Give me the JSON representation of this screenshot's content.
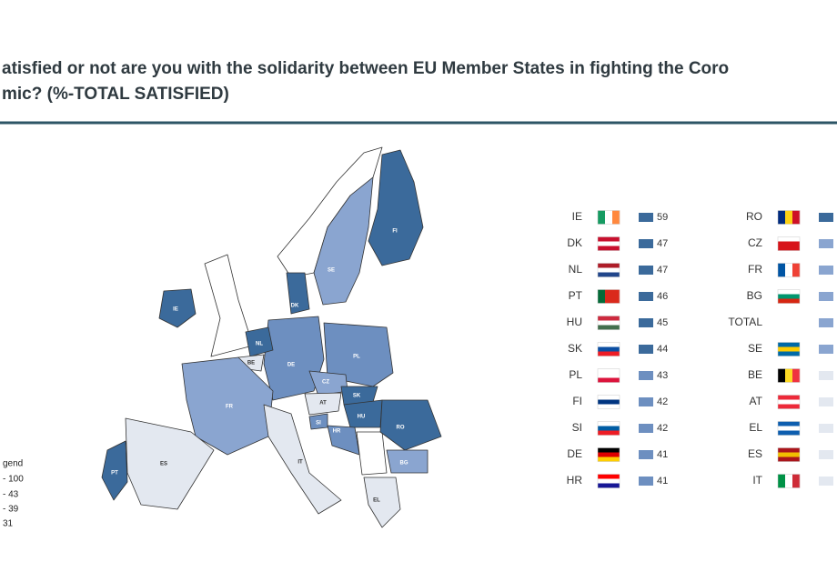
{
  "header": {
    "title_lines": [
      "atisfied or not are you with the solidarity between EU Member States in fighting the Coro",
      "mic? (%-TOTAL SATISFIED)"
    ]
  },
  "map": {
    "labels": [
      "FI",
      "SE",
      "IE",
      "DK",
      "NL",
      "BE",
      "DE",
      "PL",
      "FR",
      "CZ",
      "AT",
      "SK",
      "HU",
      "SI",
      "HR",
      "RO",
      "PT",
      "ES",
      "IT",
      "BG",
      "EL"
    ]
  },
  "legend": {
    "title": "gend",
    "items": [
      "- 100",
      "- 43",
      "- 39",
      "31"
    ]
  },
  "table": {
    "left": [
      {
        "code": "IE",
        "value": "59",
        "color": "#3b6a9b",
        "flag": [
          "#169b62",
          "#ffffff",
          "#ff883e"
        ],
        "stripes": "v"
      },
      {
        "code": "DK",
        "value": "47",
        "color": "#3b6a9b",
        "flag": [
          "#c8102e",
          "#ffffff",
          "#c8102e"
        ],
        "stripes": "h"
      },
      {
        "code": "NL",
        "value": "47",
        "color": "#3b6a9b",
        "flag": [
          "#ae1c28",
          "#ffffff",
          "#21468b"
        ],
        "stripes": "h"
      },
      {
        "code": "PT",
        "value": "46",
        "color": "#3b6a9b",
        "flag": [
          "#046a38",
          "#da291c",
          "#da291c"
        ],
        "stripes": "v"
      },
      {
        "code": "HU",
        "value": "45",
        "color": "#3b6a9b",
        "flag": [
          "#cd2a3e",
          "#ffffff",
          "#436f4d"
        ],
        "stripes": "h"
      },
      {
        "code": "SK",
        "value": "44",
        "color": "#3b6a9b",
        "flag": [
          "#ffffff",
          "#0b4ea2",
          "#ee1c25"
        ],
        "stripes": "h"
      },
      {
        "code": "PL",
        "value": "43",
        "color": "#6d8fc0",
        "flag": [
          "#ffffff",
          "#ffffff",
          "#dc143c"
        ],
        "stripes": "h"
      },
      {
        "code": "FI",
        "value": "42",
        "color": "#6d8fc0",
        "flag": [
          "#ffffff",
          "#003580",
          "#ffffff"
        ],
        "stripes": "h"
      },
      {
        "code": "SI",
        "value": "42",
        "color": "#6d8fc0",
        "flag": [
          "#ffffff",
          "#005da4",
          "#ed1c24"
        ],
        "stripes": "h"
      },
      {
        "code": "DE",
        "value": "41",
        "color": "#6d8fc0",
        "flag": [
          "#000000",
          "#dd0000",
          "#ffce00"
        ],
        "stripes": "h"
      },
      {
        "code": "HR",
        "value": "41",
        "color": "#6d8fc0",
        "flag": [
          "#ff0000",
          "#ffffff",
          "#171796"
        ],
        "stripes": "h"
      }
    ],
    "right": [
      {
        "code": "RO",
        "color": "#3b6a9b",
        "flag": [
          "#002b7f",
          "#fcd116",
          "#ce1126"
        ],
        "stripes": "v"
      },
      {
        "code": "CZ",
        "color": "#8aa5d0",
        "flag": [
          "#ffffff",
          "#d7141a",
          "#d7141a"
        ],
        "stripes": "h"
      },
      {
        "code": "FR",
        "color": "#8aa5d0",
        "flag": [
          "#0055a4",
          "#ffffff",
          "#ef4135"
        ],
        "stripes": "v"
      },
      {
        "code": "BG",
        "color": "#8aa5d0",
        "flag": [
          "#ffffff",
          "#00966e",
          "#d62612"
        ],
        "stripes": "h"
      },
      {
        "code": "TOTAL",
        "color": "#8aa5d0",
        "flag": null,
        "stripes": null
      },
      {
        "code": "SE",
        "color": "#8aa5d0",
        "flag": [
          "#006aa7",
          "#fecc00",
          "#006aa7"
        ],
        "stripes": "h"
      },
      {
        "code": "BE",
        "color": "#e3e8f0",
        "flag": [
          "#000000",
          "#fdda24",
          "#ef3340"
        ],
        "stripes": "v"
      },
      {
        "code": "AT",
        "color": "#e3e8f0",
        "flag": [
          "#ed2939",
          "#ffffff",
          "#ed2939"
        ],
        "stripes": "h"
      },
      {
        "code": "EL",
        "color": "#e3e8f0",
        "flag": [
          "#0d5eaf",
          "#ffffff",
          "#0d5eaf"
        ],
        "stripes": "h"
      },
      {
        "code": "ES",
        "color": "#e3e8f0",
        "flag": [
          "#aa151b",
          "#f1bf00",
          "#aa151b"
        ],
        "stripes": "h"
      },
      {
        "code": "IT",
        "color": "#e3e8f0",
        "flag": [
          "#009246",
          "#ffffff",
          "#ce2b37"
        ],
        "stripes": "v"
      }
    ]
  }
}
